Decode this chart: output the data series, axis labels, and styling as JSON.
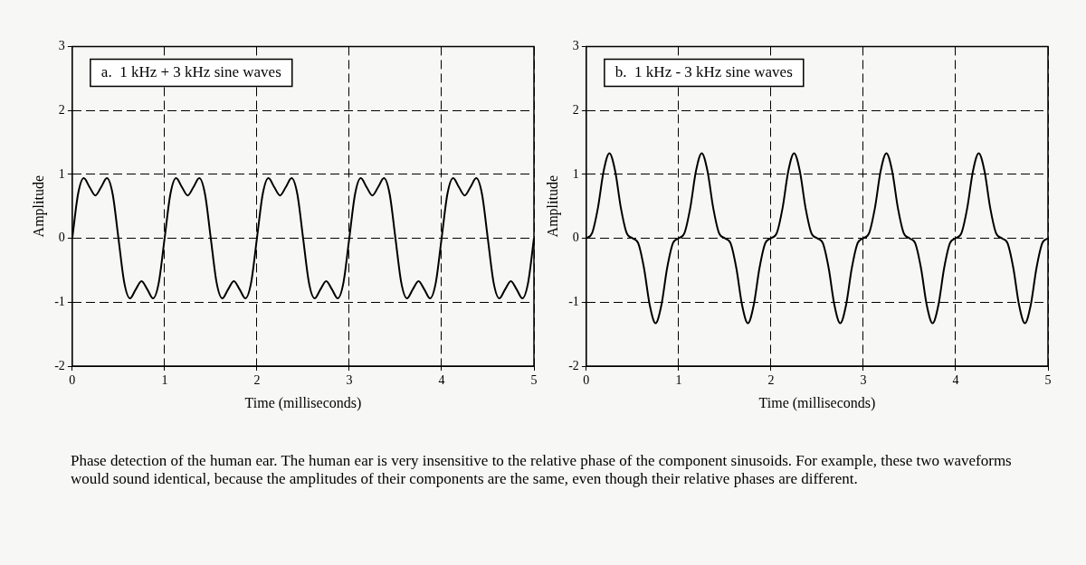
{
  "chart_data": [
    {
      "type": "line",
      "title": "a.  1 kHz + 3 kHz sine waves",
      "xlabel": "Time (milliseconds)",
      "ylabel": "Amplitude",
      "xlim": [
        0,
        5
      ],
      "ylim": [
        -2,
        3
      ],
      "xticks": [
        0,
        1,
        2,
        3,
        4,
        5
      ],
      "yticks": [
        -2,
        -1,
        0,
        1,
        2,
        3
      ],
      "grid": true,
      "legend": false,
      "marker": "none",
      "line_style": "solid",
      "x": [
        0,
        0.0625,
        0.125,
        0.1875,
        0.25,
        0.3125,
        0.375,
        0.4375,
        0.5,
        0.5625,
        0.625,
        0.6875,
        0.75,
        0.8125,
        0.875,
        0.9375,
        1,
        1.0625,
        1.125,
        1.1875,
        1.25,
        1.3125,
        1.375,
        1.4375,
        1.5,
        1.5625,
        1.625,
        1.6875,
        1.75,
        1.8125,
        1.875,
        1.9375,
        2,
        2.0625,
        2.125,
        2.1875,
        2.25,
        2.3125,
        2.375,
        2.4375,
        2.5,
        2.5625,
        2.625,
        2.6875,
        2.75,
        2.8125,
        2.875,
        2.9375,
        3,
        3.0625,
        3.125,
        3.1875,
        3.25,
        3.3125,
        3.375,
        3.4375,
        3.5,
        3.5625,
        3.625,
        3.6875,
        3.75,
        3.8125,
        3.875,
        3.9375,
        4,
        4.0625,
        4.125,
        4.1875,
        4.25,
        4.3125,
        4.375,
        4.4375,
        4.5,
        4.5625,
        4.625,
        4.6875,
        4.75,
        4.8125,
        4.875,
        4.9375,
        5
      ],
      "series": [
        {
          "color": "#000000",
          "values": [
            0,
            0.69,
            0.94,
            0.8,
            0.67,
            0.8,
            0.94,
            0.69,
            0,
            -0.69,
            -0.94,
            -0.8,
            -0.67,
            -0.8,
            -0.94,
            -0.69,
            0,
            0.69,
            0.94,
            0.8,
            0.67,
            0.8,
            0.94,
            0.69,
            0,
            -0.69,
            -0.94,
            -0.8,
            -0.67,
            -0.8,
            -0.94,
            -0.69,
            0,
            0.69,
            0.94,
            0.8,
            0.67,
            0.8,
            0.94,
            0.69,
            0,
            -0.69,
            -0.94,
            -0.8,
            -0.67,
            -0.8,
            -0.94,
            -0.69,
            0,
            0.69,
            0.94,
            0.8,
            0.67,
            0.8,
            0.94,
            0.69,
            0,
            -0.69,
            -0.94,
            -0.8,
            -0.67,
            -0.8,
            -0.94,
            -0.69,
            0,
            0.69,
            0.94,
            0.8,
            0.67,
            0.8,
            0.94,
            0.69,
            0,
            -0.69,
            -0.94,
            -0.8,
            -0.67,
            -0.8,
            -0.94,
            -0.69,
            0
          ]
        }
      ],
      "annotations": [
        "Phase detection of the human ear.  The human ear is very insensitive to the relative phase of the component sinusoids.  For example, these two waveforms would sound identical, because the amplitudes of their components are the same, even though their relative phases are different."
      ]
    },
    {
      "type": "line",
      "title": "b.  1 kHz - 3 kHz sine waves",
      "xlabel": "Time (milliseconds)",
      "ylabel": "Amplitude",
      "xlim": [
        0,
        5
      ],
      "ylim": [
        -2,
        3
      ],
      "xticks": [
        0,
        1,
        2,
        3,
        4,
        5
      ],
      "yticks": [
        -2,
        -1,
        0,
        1,
        2,
        3
      ],
      "grid": true,
      "legend": false,
      "marker": "none",
      "line_style": "solid",
      "x": [
        0,
        0.0625,
        0.125,
        0.1875,
        0.25,
        0.3125,
        0.375,
        0.4375,
        0.5,
        0.5625,
        0.625,
        0.6875,
        0.75,
        0.8125,
        0.875,
        0.9375,
        1,
        1.0625,
        1.125,
        1.1875,
        1.25,
        1.3125,
        1.375,
        1.4375,
        1.5,
        1.5625,
        1.625,
        1.6875,
        1.75,
        1.8125,
        1.875,
        1.9375,
        2,
        2.0625,
        2.125,
        2.1875,
        2.25,
        2.3125,
        2.375,
        2.4375,
        2.5,
        2.5625,
        2.625,
        2.6875,
        2.75,
        2.8125,
        2.875,
        2.9375,
        3,
        3.0625,
        3.125,
        3.1875,
        3.25,
        3.3125,
        3.375,
        3.4375,
        3.5,
        3.5625,
        3.625,
        3.6875,
        3.75,
        3.8125,
        3.875,
        3.9375,
        4,
        4.0625,
        4.125,
        4.1875,
        4.25,
        4.3125,
        4.375,
        4.4375,
        4.5,
        4.5625,
        4.625,
        4.6875,
        4.75,
        4.8125,
        4.875,
        4.9375,
        5
      ],
      "series": [
        {
          "color": "#000000",
          "values": [
            0,
            0.08,
            0.47,
            1.05,
            1.33,
            1.05,
            0.47,
            0.08,
            0,
            -0.08,
            -0.47,
            -1.05,
            -1.33,
            -1.05,
            -0.47,
            -0.08,
            0,
            0.08,
            0.47,
            1.05,
            1.33,
            1.05,
            0.47,
            0.08,
            0,
            -0.08,
            -0.47,
            -1.05,
            -1.33,
            -1.05,
            -0.47,
            -0.08,
            0,
            0.08,
            0.47,
            1.05,
            1.33,
            1.05,
            0.47,
            0.08,
            0,
            -0.08,
            -0.47,
            -1.05,
            -1.33,
            -1.05,
            -0.47,
            -0.08,
            0,
            0.08,
            0.47,
            1.05,
            1.33,
            1.05,
            0.47,
            0.08,
            0,
            -0.08,
            -0.47,
            -1.05,
            -1.33,
            -1.05,
            -0.47,
            -0.08,
            0,
            0.08,
            0.47,
            1.05,
            1.33,
            1.05,
            0.47,
            0.08,
            0,
            -0.08,
            -0.47,
            -1.05,
            -1.33,
            -1.05,
            -0.47,
            -0.08,
            0
          ]
        }
      ]
    }
  ]
}
